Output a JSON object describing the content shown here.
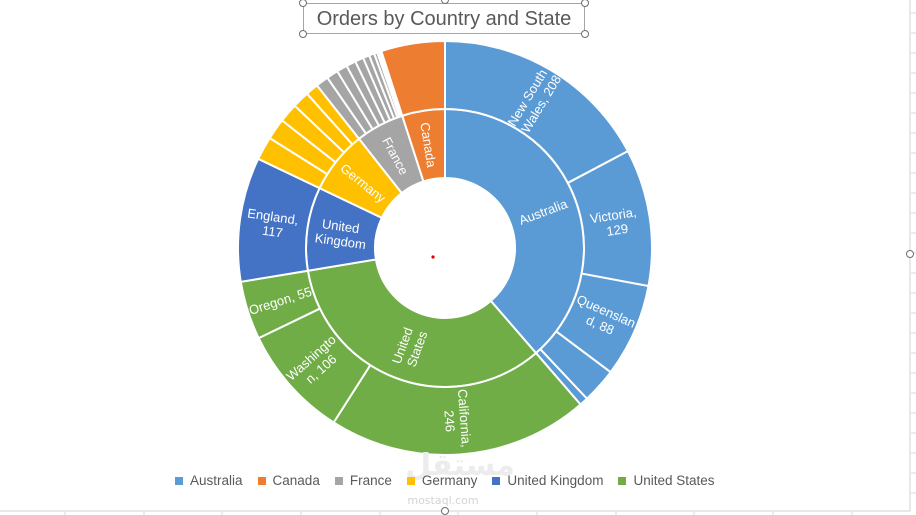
{
  "chart_data": {
    "type": "pie",
    "title": "Orders by Country and State",
    "legend_position": "bottom",
    "groups": [
      {
        "name": "Australia",
        "color": "#5B9BD5",
        "children": [
          {
            "label": "New South Wales",
            "value": 208
          },
          {
            "label": "Victoria",
            "value": 129
          },
          {
            "label": "Queensland",
            "value": 88
          },
          {
            "label": "",
            "value": 33
          },
          {
            "label": "",
            "value": 8
          }
        ]
      },
      {
        "name": "United States",
        "color": "#70AD47",
        "children": [
          {
            "label": "California",
            "value": 246
          },
          {
            "label": "Washington",
            "value": 106
          },
          {
            "label": "Oregon",
            "value": 55
          }
        ]
      },
      {
        "name": "United Kingdom",
        "color": "#4472C4",
        "children": [
          {
            "label": "England",
            "value": 117
          }
        ]
      },
      {
        "name": "Germany",
        "color": "#FFC000",
        "children": [
          {
            "label": "",
            "value": 22
          },
          {
            "label": "",
            "value": 20
          },
          {
            "label": "",
            "value": 18
          },
          {
            "label": "",
            "value": 16
          },
          {
            "label": "",
            "value": 12
          }
        ]
      },
      {
        "name": "France",
        "color": "#A5A5A5",
        "children": [
          {
            "label": "",
            "value": 12
          },
          {
            "label": "",
            "value": 11
          },
          {
            "label": "",
            "value": 10
          },
          {
            "label": "",
            "value": 9
          },
          {
            "label": "",
            "value": 8
          },
          {
            "label": "",
            "value": 6
          },
          {
            "label": "",
            "value": 5
          },
          {
            "label": "",
            "value": 3
          },
          {
            "label": "",
            "value": 2
          },
          {
            "label": "",
            "value": 1
          },
          {
            "label": "",
            "value": 1
          }
        ]
      },
      {
        "name": "Canada",
        "color": "#ED7D31",
        "children": [
          {
            "label": "",
            "value": 60
          }
        ]
      }
    ],
    "legend": [
      {
        "label": "Australia",
        "color": "#5B9BD5"
      },
      {
        "label": "Canada",
        "color": "#ED7D31"
      },
      {
        "label": "France",
        "color": "#A5A5A5"
      },
      {
        "label": "Germany",
        "color": "#FFC000"
      },
      {
        "label": "United Kingdom",
        "color": "#4472C4"
      },
      {
        "label": "United States",
        "color": "#70AD47"
      }
    ]
  },
  "watermark": {
    "logo": "مستقل",
    "site": "mostaql.com"
  }
}
